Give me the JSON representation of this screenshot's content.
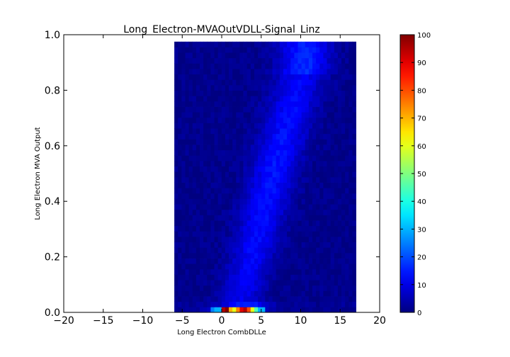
{
  "chart_data": {
    "type": "heatmap",
    "title": "Long_Electron-MVAOutVDLL-Signal_Linz",
    "xlabel": "Long Electron CombDLLe",
    "ylabel": "Long Electron MVA Output",
    "xlim": [
      -20,
      20
    ],
    "ylim": [
      0.0,
      1.0
    ],
    "xticks": [
      "−20",
      "−15",
      "−10",
      "−5",
      "0",
      "5",
      "10",
      "15",
      "20"
    ],
    "yticks": [
      "0.0",
      "0.2",
      "0.4",
      "0.6",
      "0.8",
      "1.0"
    ],
    "data_extent": {
      "x": [
        -6,
        17
      ],
      "y": [
        0.0,
        0.975
      ]
    },
    "bins": {
      "nx": 50,
      "ny": 50
    },
    "colorbar": {
      "range": [
        0,
        100
      ],
      "ticks": [
        "0",
        "10",
        "20",
        "30",
        "40",
        "50",
        "60",
        "70",
        "80",
        "90",
        "100"
      ],
      "colormap": "jet"
    },
    "distribution": {
      "description_points": [
        {
          "y": 0.0,
          "x_center": 2.0
        },
        {
          "y": 0.5,
          "x_center": 6.5
        },
        {
          "y": 0.9,
          "x_center": 10.5
        }
      ],
      "peak_row": {
        "y_bin": 0,
        "x_values": [
          -1.0,
          -0.5,
          0.0,
          0.5,
          1.0,
          1.5,
          2.0,
          2.5,
          3.0,
          3.5,
          4.0,
          4.5,
          5.0
        ],
        "counts": [
          25,
          30,
          95,
          100,
          70,
          60,
          75,
          90,
          95,
          80,
          60,
          45,
          30
        ]
      }
    }
  }
}
